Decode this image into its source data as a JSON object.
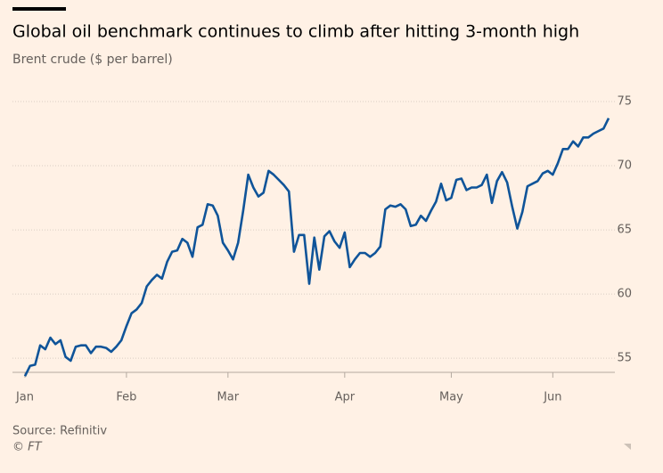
{
  "chart_data": {
    "type": "line",
    "title": "Global oil benchmark continues to climb after hitting 3-month high",
    "subtitle": "Brent crude ($ per barrel)",
    "source": "Source: Refinitiv",
    "credit": "© FT",
    "categories": [
      "Jan",
      null,
      null,
      null,
      null,
      null,
      null,
      null,
      null,
      null,
      null,
      null,
      null,
      null,
      null,
      null,
      null,
      null,
      null,
      null,
      "Feb",
      null,
      null,
      null,
      null,
      null,
      null,
      null,
      null,
      null,
      null,
      null,
      null,
      null,
      null,
      null,
      null,
      null,
      null,
      null,
      "Mar",
      null,
      null,
      null,
      null,
      null,
      null,
      null,
      null,
      null,
      null,
      null,
      null,
      null,
      null,
      null,
      null,
      null,
      null,
      null,
      null,
      null,
      null,
      "Apr",
      null,
      null,
      null,
      null,
      null,
      null,
      null,
      null,
      null,
      null,
      null,
      null,
      null,
      null,
      null,
      null,
      null,
      null,
      null,
      null,
      "May",
      null,
      null,
      null,
      null,
      null,
      null,
      null,
      null,
      null,
      null,
      null,
      null,
      null,
      null,
      null,
      null,
      null,
      null,
      null,
      "Jun",
      null,
      null,
      null,
      null,
      null,
      null,
      null,
      null,
      null,
      null,
      null
    ],
    "series": [
      {
        "name": "Brent crude",
        "color": "#0f5499",
        "values": [
          53.6,
          54.4,
          54.5,
          56.0,
          55.7,
          56.6,
          56.1,
          56.4,
          55.1,
          54.8,
          55.9,
          56.0,
          56.0,
          55.4,
          55.9,
          55.9,
          55.8,
          55.5,
          55.9,
          56.4,
          57.5,
          58.5,
          58.8,
          59.3,
          60.6,
          61.1,
          61.5,
          61.2,
          62.5,
          63.3,
          63.4,
          64.3,
          64.0,
          62.9,
          65.2,
          65.4,
          67.0,
          66.9,
          66.1,
          64.0,
          63.4,
          62.7,
          64.0,
          66.5,
          69.3,
          68.3,
          67.6,
          67.9,
          69.6,
          69.3,
          68.9,
          68.5,
          68.0,
          63.3,
          64.6,
          64.6,
          60.8,
          64.4,
          61.9,
          64.5,
          64.9,
          64.1,
          63.6,
          64.8,
          62.1,
          62.7,
          63.2,
          63.2,
          62.9,
          63.2,
          63.7,
          66.6,
          66.9,
          66.8,
          67.0,
          66.6,
          65.3,
          65.4,
          66.1,
          65.7,
          66.5,
          67.2,
          68.6,
          67.3,
          67.5,
          68.9,
          69.0,
          68.1,
          68.3,
          68.3,
          68.5,
          69.3,
          67.1,
          68.8,
          69.5,
          68.7,
          66.8,
          65.1,
          66.4,
          68.4,
          68.6,
          68.8,
          69.4,
          69.6,
          69.3,
          70.2,
          71.3,
          71.3,
          71.9,
          71.5,
          72.2,
          72.2,
          72.5,
          72.7,
          72.9,
          73.7
        ]
      }
    ],
    "ylim": [
      53.9,
      76
    ],
    "yticks": [
      55,
      60,
      65,
      70,
      75
    ],
    "grid": true
  }
}
